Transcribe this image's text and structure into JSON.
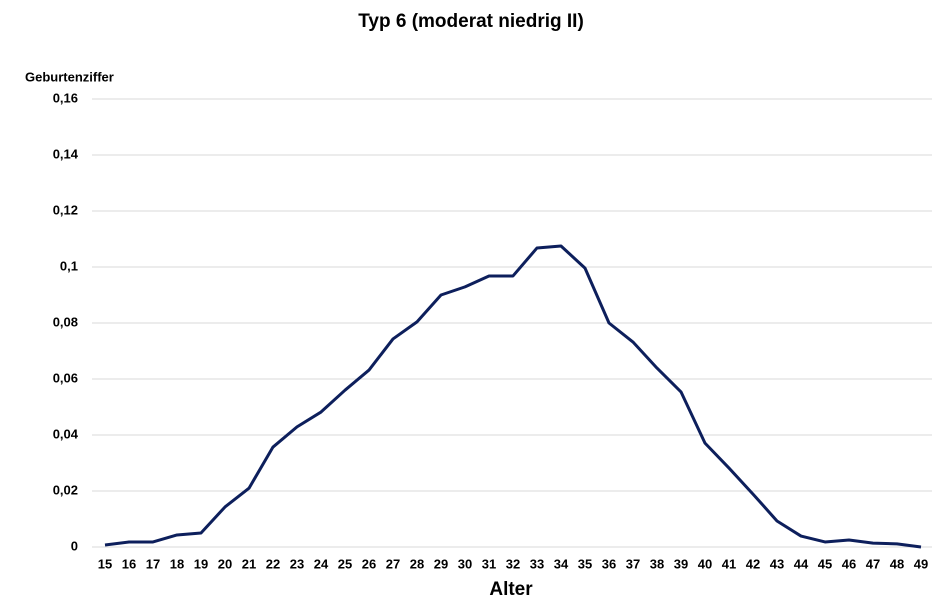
{
  "chart_data": {
    "type": "line",
    "title": "Typ 6 (moderat niedrig II)",
    "y_label": "Geburtenziffer",
    "x_label": "Alter",
    "categories": [
      "15",
      "16",
      "17",
      "18",
      "19",
      "20",
      "21",
      "22",
      "23",
      "24",
      "25",
      "26",
      "27",
      "28",
      "29",
      "30",
      "31",
      "32",
      "33",
      "34",
      "35",
      "36",
      "37",
      "38",
      "39",
      "40",
      "41",
      "42",
      "43",
      "44",
      "45",
      "46",
      "47",
      "48",
      "49"
    ],
    "series": [
      {
        "color": "#0d1f5c",
        "values": [
          0.0007,
          0.0018,
          0.0018,
          0.0043,
          0.005,
          0.0143,
          0.021,
          0.0357,
          0.0429,
          0.0482,
          0.056,
          0.0632,
          0.0743,
          0.0804,
          0.09,
          0.0929,
          0.0968,
          0.0968,
          0.1068,
          0.1075,
          0.0996,
          0.08,
          0.0732,
          0.0639,
          0.0554,
          0.0371,
          0.0282,
          0.0189,
          0.0093,
          0.0039,
          0.0018,
          0.0025,
          0.0014,
          0.0011,
          0.0
        ]
      }
    ],
    "ylim": [
      0,
      0.16
    ],
    "yticks": [
      0,
      {
        "value": 0.02,
        "label": "0,02"
      },
      {
        "value": 0.04,
        "label": "0,04"
      },
      {
        "value": 0.06,
        "label": "0,06"
      },
      {
        "value": 0.08,
        "label": "0,08"
      },
      {
        "value": 0.1,
        "label": "0,1"
      },
      {
        "value": 0.12,
        "label": "0,12"
      },
      {
        "value": 0.14,
        "label": "0,14"
      },
      {
        "value": 0.16,
        "label": "0,16"
      }
    ],
    "grid": true
  }
}
